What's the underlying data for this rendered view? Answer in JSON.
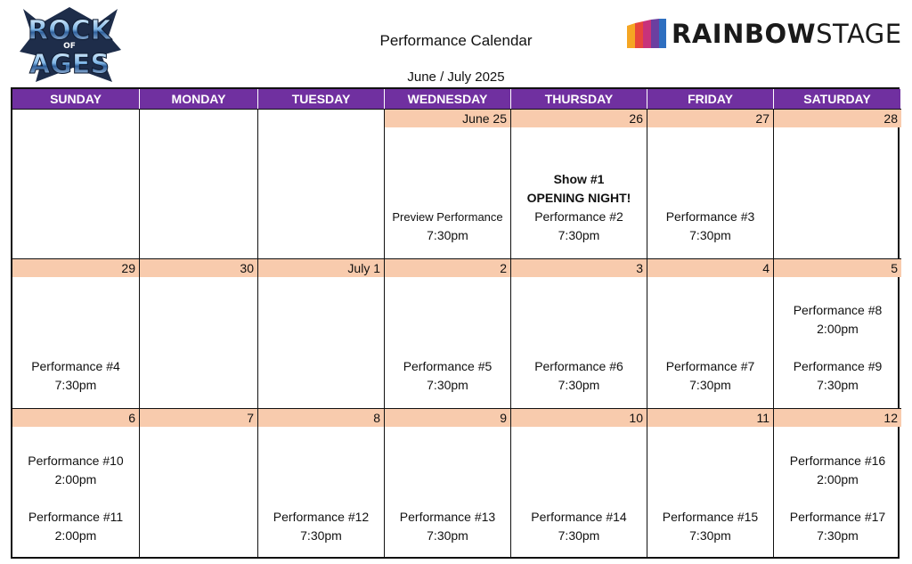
{
  "header": {
    "logo_text": "ROCK OF AGES",
    "brand_a": "RAINBOW",
    "brand_b": "STAGE",
    "brand_colors": [
      "#f5a623",
      "#e8463c",
      "#c8327a",
      "#6b3fa0",
      "#2e6fc0"
    ],
    "title": "Performance Calendar",
    "subtitle": "June / July 2025"
  },
  "colors": {
    "header_bg": "#7030a0",
    "date_bg": "#f8cbad"
  },
  "days": [
    "SUNDAY",
    "MONDAY",
    "TUESDAY",
    "WEDNESDAY",
    "THURSDAY",
    "FRIDAY",
    "SATURDAY"
  ],
  "weeks": [
    [
      {
        "date": "",
        "lines": []
      },
      {
        "date": "",
        "lines": []
      },
      {
        "date": "",
        "lines": []
      },
      {
        "date": "June 25",
        "lines": [
          {
            "text": "Preview Performance",
            "small": true
          },
          {
            "text": "7:30pm"
          }
        ]
      },
      {
        "date": "26",
        "lines": [
          {
            "text": "Show #1",
            "bold": true
          },
          {
            "text": "OPENING NIGHT!",
            "bold": true
          },
          {
            "text": "Performance #2"
          },
          {
            "text": "7:30pm"
          }
        ]
      },
      {
        "date": "27",
        "lines": [
          {
            "text": "Performance #3"
          },
          {
            "text": "7:30pm"
          }
        ]
      },
      {
        "date": "28",
        "lines": []
      }
    ],
    [
      {
        "date": "29",
        "lines": [
          {
            "text": "Performance #4"
          },
          {
            "text": "7:30pm"
          }
        ]
      },
      {
        "date": "30",
        "lines": []
      },
      {
        "date": "July 1",
        "lines": []
      },
      {
        "date": "2",
        "lines": [
          {
            "text": "Performance #5"
          },
          {
            "text": "7:30pm"
          }
        ]
      },
      {
        "date": "3",
        "lines": [
          {
            "text": "Performance #6"
          },
          {
            "text": "7:30pm"
          }
        ]
      },
      {
        "date": "4",
        "lines": [
          {
            "text": "Performance #7"
          },
          {
            "text": "7:30pm"
          }
        ]
      },
      {
        "date": "5",
        "lines": [
          {
            "text": "Performance #8"
          },
          {
            "text": "2:00pm"
          },
          {
            "text": ""
          },
          {
            "text": "Performance #9"
          },
          {
            "text": "7:30pm"
          }
        ]
      }
    ],
    [
      {
        "date": "6",
        "lines": [
          {
            "text": "Performance #10"
          },
          {
            "text": "2:00pm"
          },
          {
            "text": ""
          },
          {
            "text": "Performance #11"
          },
          {
            "text": "2:00pm"
          }
        ]
      },
      {
        "date": "7",
        "lines": []
      },
      {
        "date": "8",
        "lines": [
          {
            "text": "Performance #12"
          },
          {
            "text": "7:30pm"
          }
        ]
      },
      {
        "date": "9",
        "lines": [
          {
            "text": "Performance #13"
          },
          {
            "text": "7:30pm"
          }
        ]
      },
      {
        "date": "10",
        "lines": [
          {
            "text": "Performance #14"
          },
          {
            "text": "7:30pm"
          }
        ]
      },
      {
        "date": "11",
        "lines": [
          {
            "text": "Performance #15"
          },
          {
            "text": "7:30pm"
          }
        ]
      },
      {
        "date": "12",
        "lines": [
          {
            "text": "Performance #16"
          },
          {
            "text": "2:00pm"
          },
          {
            "text": ""
          },
          {
            "text": "Performance #17"
          },
          {
            "text": "7:30pm"
          }
        ]
      }
    ]
  ]
}
